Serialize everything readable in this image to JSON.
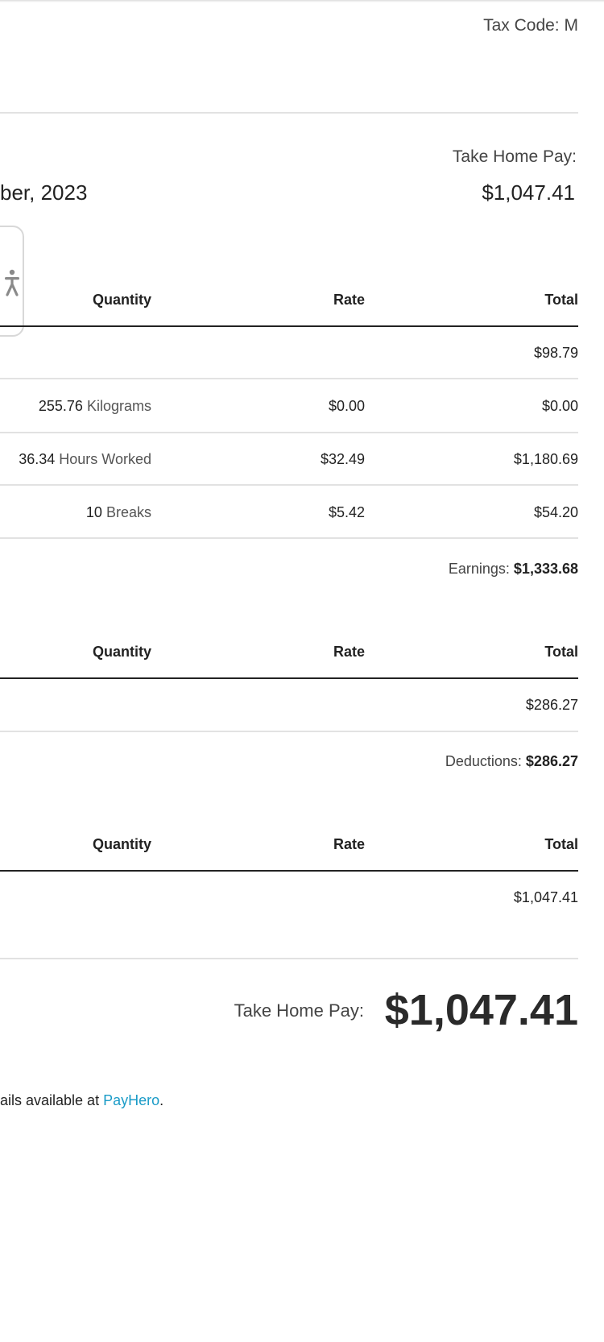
{
  "header": {
    "tax_code_label": "Tax Code:",
    "tax_code_value": "M",
    "take_home_label": "Take Home Pay:",
    "take_home_value": "$1,047.41",
    "period_text": "ber, 2023"
  },
  "columns": {
    "quantity": "Quantity",
    "rate": "Rate",
    "total": "Total"
  },
  "earnings": {
    "rows": [
      {
        "qty_num": "",
        "qty_unit": "",
        "rate": "",
        "total": "$98.79"
      },
      {
        "qty_num": "255.76",
        "qty_unit": "Kilograms",
        "rate": "$0.00",
        "total": "$0.00"
      },
      {
        "qty_num": "36.34",
        "qty_unit": "Hours Worked",
        "rate": "$32.49",
        "total": "$1,180.69"
      },
      {
        "qty_num": "10",
        "qty_unit": "Breaks",
        "rate": "$5.42",
        "total": "$54.20"
      }
    ],
    "subtotal_label": "Earnings:",
    "subtotal_value": "$1,333.68"
  },
  "deductions": {
    "rows": [
      {
        "total": "$286.27"
      }
    ],
    "subtotal_label": "Deductions:",
    "subtotal_value": "$286.27"
  },
  "third_section": {
    "rows": [
      {
        "total": "$1,047.41"
      }
    ]
  },
  "summary": {
    "label": "Take Home Pay:",
    "value": "$1,047.41"
  },
  "footer": {
    "prefix": "ails available at ",
    "link": "PayHero",
    "suffix": "."
  },
  "accessibility": {
    "icon": "accessibility-person-icon"
  },
  "colors": {
    "link": "#1a9bc7",
    "text": "#333333",
    "rule": "#e2e2e2",
    "rule_dark": "#222222"
  }
}
